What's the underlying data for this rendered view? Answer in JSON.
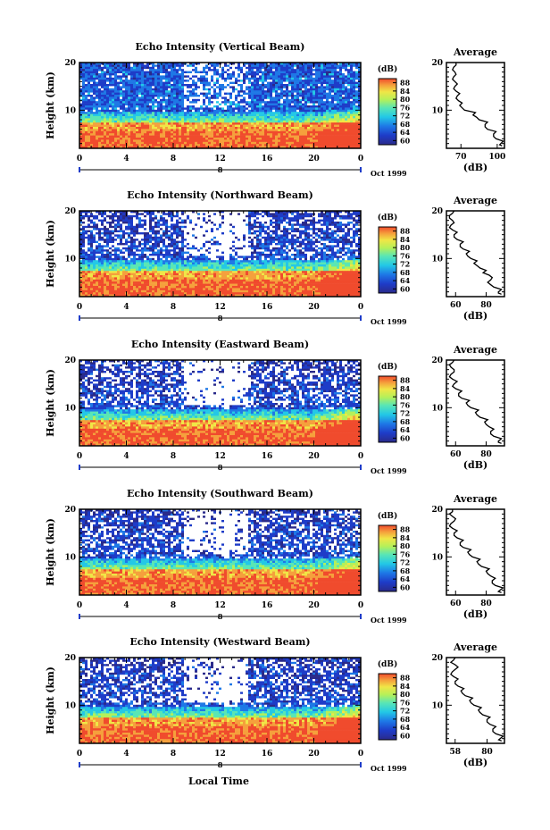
{
  "chart_data": [
    {
      "type": "heatmap",
      "title": "Echo Intensity (Vertical Beam)",
      "ylabel": "Height (km)",
      "xlim": [
        0,
        24
      ],
      "ylim": [
        2,
        20
      ],
      "x_ticks": [
        "0",
        "4",
        "8",
        "12",
        "16",
        "20",
        "0"
      ],
      "y_ticks": [
        "10",
        "20"
      ],
      "date_labels": [
        "8",
        "Oct 1999"
      ],
      "colorbar": {
        "unit": "(dB)",
        "ticks": [
          "88",
          "84",
          "80",
          "76",
          "72",
          "68",
          "64",
          "60"
        ]
      },
      "average_profile": {
        "title": "Average",
        "xlabel": "(dB)",
        "x_ticks": [
          "70",
          "100"
        ],
        "y_ticks": [
          "10",
          "20"
        ],
        "xlim": [
          58,
          106
        ],
        "heights": [
          2.5,
          3,
          4,
          5,
          6,
          7,
          8,
          9,
          10,
          11,
          12,
          13,
          14,
          15,
          16,
          17,
          18,
          19,
          20
        ],
        "values": [
          104,
          103,
          99,
          97,
          92,
          90,
          85,
          80,
          73,
          69,
          68,
          67,
          66,
          65,
          65,
          64,
          65,
          64,
          66
        ]
      },
      "noise_amount": 0.2
    },
    {
      "type": "heatmap",
      "title": "Echo Intensity (Northward Beam)",
      "ylabel": "Height (km)",
      "xlim": [
        0,
        24
      ],
      "ylim": [
        2,
        20
      ],
      "x_ticks": [
        "0",
        "4",
        "8",
        "12",
        "16",
        "20",
        "0"
      ],
      "y_ticks": [
        "10",
        "20"
      ],
      "date_labels": [
        "8",
        "Oct 1999"
      ],
      "colorbar": {
        "unit": "(dB)",
        "ticks": [
          "88",
          "84",
          "80",
          "76",
          "72",
          "68",
          "64",
          "60"
        ]
      },
      "average_profile": {
        "title": "Average",
        "xlabel": "(dB)",
        "x_ticks": [
          "60",
          "80"
        ],
        "y_ticks": [
          "10",
          "20"
        ],
        "xlim": [
          54,
          92
        ],
        "heights": [
          2.5,
          3,
          4,
          5,
          6,
          7,
          8,
          9,
          10,
          11,
          12,
          13,
          14,
          15,
          16,
          17,
          18,
          19,
          20
        ],
        "values": [
          90,
          88,
          85,
          81,
          84,
          78,
          76,
          72,
          70,
          67,
          65,
          63,
          61,
          59,
          58,
          57,
          58,
          56,
          59
        ]
      },
      "noise_amount": 0.55
    },
    {
      "type": "heatmap",
      "title": "Echo Intensity (Eastward Beam)",
      "ylabel": "Height (km)",
      "xlim": [
        0,
        24
      ],
      "ylim": [
        2,
        20
      ],
      "x_ticks": [
        "0",
        "4",
        "8",
        "12",
        "16",
        "20",
        "0"
      ],
      "y_ticks": [
        "10",
        "20"
      ],
      "date_labels": [
        "8",
        "Oct 1999"
      ],
      "colorbar": {
        "unit": "(dB)",
        "ticks": [
          "88",
          "84",
          "80",
          "76",
          "72",
          "68",
          "64",
          "60"
        ]
      },
      "average_profile": {
        "title": "Average",
        "xlabel": "(dB)",
        "x_ticks": [
          "60",
          "80"
        ],
        "y_ticks": [
          "10",
          "20"
        ],
        "xlim": [
          54,
          92
        ],
        "heights": [
          2.5,
          3,
          4,
          5,
          6,
          7,
          8,
          9,
          10,
          11,
          12,
          13,
          14,
          15,
          16,
          17,
          18,
          19,
          20
        ],
        "values": [
          90,
          88,
          85,
          83,
          82,
          79,
          76,
          73,
          70,
          67,
          64,
          62,
          60,
          59,
          58,
          57,
          59,
          56,
          59
        ]
      },
      "noise_amount": 0.62
    },
    {
      "type": "heatmap",
      "title": "Echo Intensity (Southward Beam)",
      "ylabel": "Height (km)",
      "xlim": [
        0,
        24
      ],
      "ylim": [
        2,
        20
      ],
      "x_ticks": [
        "0",
        "4",
        "8",
        "12",
        "16",
        "20",
        "0"
      ],
      "y_ticks": [
        "10",
        "20"
      ],
      "date_labels": [
        "8",
        "Oct 1999"
      ],
      "colorbar": {
        "unit": "(dB)",
        "ticks": [
          "88",
          "84",
          "80",
          "76",
          "72",
          "68",
          "64",
          "60"
        ]
      },
      "average_profile": {
        "title": "Average",
        "xlabel": "(dB)",
        "x_ticks": [
          "60",
          "80"
        ],
        "y_ticks": [
          "10",
          "20"
        ],
        "xlim": [
          54,
          92
        ],
        "heights": [
          2.5,
          3,
          4,
          5,
          6,
          7,
          8,
          9,
          10,
          11,
          12,
          13,
          14,
          15,
          16,
          17,
          18,
          19,
          20
        ],
        "values": [
          90,
          89,
          86,
          84,
          83,
          80,
          77,
          74,
          71,
          68,
          65,
          63,
          61,
          59,
          58,
          57,
          60,
          56,
          58
        ]
      },
      "noise_amount": 0.58
    },
    {
      "type": "heatmap",
      "title": "Echo Intensity (Westward Beam)",
      "ylabel": "Height (km)",
      "xlim": [
        0,
        24
      ],
      "ylim": [
        2,
        20
      ],
      "x_ticks": [
        "0",
        "4",
        "8",
        "12",
        "16",
        "20",
        "0"
      ],
      "y_ticks": [
        "10",
        "20"
      ],
      "date_labels": [
        "8",
        "Oct 1999"
      ],
      "colorbar": {
        "unit": "(dB)",
        "ticks": [
          "88",
          "84",
          "80",
          "76",
          "72",
          "68",
          "64",
          "60"
        ]
      },
      "average_profile": {
        "title": "Average",
        "xlabel": "(dB)",
        "x_ticks": [
          "58",
          "80"
        ],
        "y_ticks": [
          "10",
          "20"
        ],
        "xlim": [
          52,
          92
        ],
        "heights": [
          2.5,
          3,
          4,
          5,
          6,
          7,
          8,
          9,
          10,
          11,
          12,
          13,
          14,
          15,
          16,
          17,
          18,
          19,
          20
        ],
        "values": [
          90,
          89,
          86,
          84,
          82,
          80,
          77,
          74,
          71,
          68,
          65,
          62,
          60,
          58,
          57,
          56,
          60,
          55,
          58
        ]
      },
      "noise_amount": 0.6
    }
  ],
  "xlabel": "Local Time",
  "colors": {
    "scale": [
      "#2a2a8a",
      "#1e3cc8",
      "#1e78e6",
      "#23c8e6",
      "#5ae6b4",
      "#b4f05a",
      "#f0e646",
      "#f5a03c",
      "#f04b2d"
    ]
  }
}
